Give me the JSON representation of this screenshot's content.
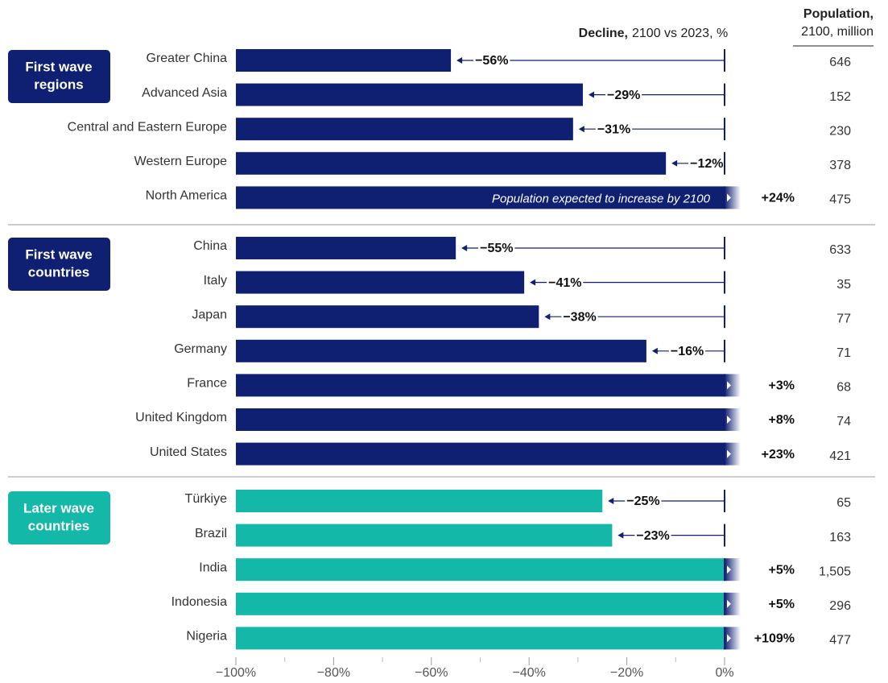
{
  "chart_data": {
    "type": "bar",
    "header_decline": "Decline,",
    "header_decline_rest": "2100 vs 2023, %",
    "header_population": "Population,",
    "header_population_rest": "2100, million",
    "annotation": "Population expected to increase by 2100",
    "xlim": [
      -100,
      0
    ],
    "xticks": [
      {
        "value": -100,
        "label": "−100%"
      },
      {
        "value": -80,
        "label": "−80%"
      },
      {
        "value": -60,
        "label": "−60%"
      },
      {
        "value": -40,
        "label": "−40%"
      },
      {
        "value": -20,
        "label": "−20%"
      },
      {
        "value": 0,
        "label": "0%"
      }
    ],
    "xminor_ticks": [
      -90,
      -70,
      -50,
      -30,
      -10
    ],
    "groups": [
      {
        "label": [
          "First wave",
          "regions"
        ],
        "color": "#0f2073",
        "categories": [
          "Greater China",
          "Advanced Asia",
          "Central and Eastern Europe",
          "Western Europe",
          "North America"
        ],
        "values": [
          -56,
          -29,
          -31,
          -12,
          24
        ],
        "value_labels": [
          "−56%",
          "−29%",
          "−31%",
          "−12%",
          "+24%"
        ],
        "population": [
          646,
          152,
          230,
          378,
          475
        ],
        "population_labels": [
          "646",
          "152",
          "230",
          "378",
          "475"
        ]
      },
      {
        "label": [
          "First wave",
          "countries"
        ],
        "color": "#0f2073",
        "categories": [
          "China",
          "Italy",
          "Japan",
          "Germany",
          "France",
          "United Kingdom",
          "United States"
        ],
        "values": [
          -55,
          -41,
          -38,
          -16,
          3,
          8,
          23
        ],
        "value_labels": [
          "−55%",
          "−41%",
          "−38%",
          "−16%",
          "+3%",
          "+8%",
          "+23%"
        ],
        "population": [
          633,
          35,
          77,
          71,
          68,
          74,
          421
        ],
        "population_labels": [
          "633",
          "35",
          "77",
          "71",
          "68",
          "74",
          "421"
        ]
      },
      {
        "label": [
          "Later wave",
          "countries"
        ],
        "color": "#13b8a8",
        "categories": [
          "Türkiye",
          "Brazil",
          "India",
          "Indonesia",
          "Nigeria"
        ],
        "values": [
          -25,
          -23,
          5,
          5,
          109
        ],
        "value_labels": [
          "−25%",
          "−23%",
          "+5%",
          "+5%",
          "+109%"
        ],
        "population": [
          65,
          163,
          1505,
          296,
          477
        ],
        "population_labels": [
          "65",
          "163",
          "1,505",
          "296",
          "477"
        ]
      }
    ]
  }
}
